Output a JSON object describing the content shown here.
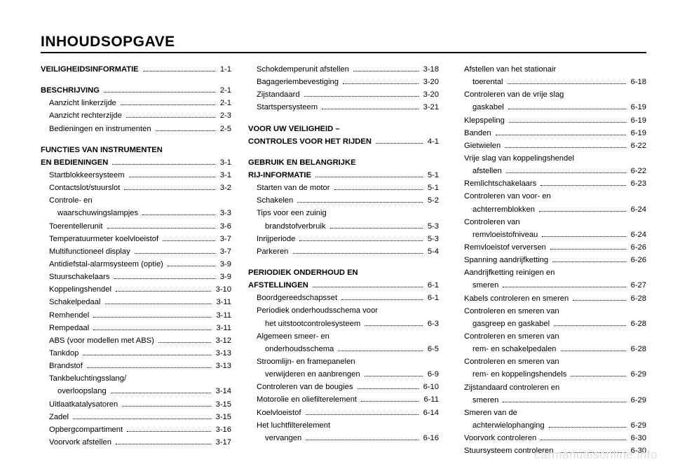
{
  "title": "INHOUDSOPGAVE",
  "watermark": "carmanualsonline.info",
  "columns": [
    [
      {
        "type": "sectionline",
        "bold": "VEILIGHEIDSINFORMATIE",
        "page": "1-1",
        "indent": 0
      },
      {
        "type": "spacer"
      },
      {
        "type": "sectionline",
        "bold": "BESCHRIJVING",
        "page": "2-1",
        "indent": 0
      },
      {
        "type": "entry",
        "label": "Aanzicht linkerzijde",
        "page": "2-1",
        "indent": 1
      },
      {
        "type": "entry",
        "label": "Aanzicht rechterzijde",
        "page": "2-3",
        "indent": 1
      },
      {
        "type": "entry",
        "label": "Bedieningen en instrumenten",
        "page": "2-5",
        "indent": 1
      },
      {
        "type": "spacer"
      },
      {
        "type": "sectiontext",
        "bold": "FUNCTIES VAN INSTRUMENTEN",
        "indent": 0
      },
      {
        "type": "sectionline",
        "bold": "EN BEDIENINGEN",
        "page": "3-1",
        "indent": 0
      },
      {
        "type": "entry",
        "label": "Startblokkeersysteem",
        "page": "3-1",
        "indent": 1
      },
      {
        "type": "entry",
        "label": "Contactslot/stuurslot",
        "page": "3-2",
        "indent": 1
      },
      {
        "type": "cont",
        "label": "Controle- en",
        "indent": 1
      },
      {
        "type": "entry",
        "label": "waarschuwingslampjes",
        "page": "3-3",
        "indent": 2
      },
      {
        "type": "entry",
        "label": "Toerentellerunit",
        "page": "3-6",
        "indent": 1
      },
      {
        "type": "entry",
        "label": "Temperatuurmeter koelvloeistof",
        "page": "3-7",
        "indent": 1
      },
      {
        "type": "entry",
        "label": "Multifunctioneel display",
        "page": "3-7",
        "indent": 1
      },
      {
        "type": "entry",
        "label": "Antidiefstal-alarmsysteem (optie)",
        "page": "3-9",
        "indent": 1
      },
      {
        "type": "entry",
        "label": "Stuurschakelaars",
        "page": "3-9",
        "indent": 1
      },
      {
        "type": "entry",
        "label": "Koppelingshendel",
        "page": "3-10",
        "indent": 1
      },
      {
        "type": "entry",
        "label": "Schakelpedaal",
        "page": "3-11",
        "indent": 1
      },
      {
        "type": "entry",
        "label": "Remhendel",
        "page": "3-11",
        "indent": 1
      },
      {
        "type": "entry",
        "label": "Rempedaal",
        "page": "3-11",
        "indent": 1
      },
      {
        "type": "entry",
        "label": "ABS (voor modellen met ABS)",
        "page": "3-12",
        "indent": 1
      },
      {
        "type": "entry",
        "label": "Tankdop",
        "page": "3-13",
        "indent": 1
      },
      {
        "type": "entry",
        "label": "Brandstof",
        "page": "3-13",
        "indent": 1
      },
      {
        "type": "cont",
        "label": "Tankbeluchtingsslang/",
        "indent": 1
      },
      {
        "type": "entry",
        "label": "overloopslang",
        "page": "3-14",
        "indent": 2
      },
      {
        "type": "entry",
        "label": "Uitlaatkatalysatoren",
        "page": "3-15",
        "indent": 1
      },
      {
        "type": "entry",
        "label": "Zadel",
        "page": "3-15",
        "indent": 1
      },
      {
        "type": "entry",
        "label": "Opbergcompartiment",
        "page": "3-16",
        "indent": 1
      },
      {
        "type": "entry",
        "label": "Voorvork afstellen",
        "page": "3-17",
        "indent": 1
      }
    ],
    [
      {
        "type": "entry",
        "label": "Schokdemperunit afstellen",
        "page": "3-18",
        "indent": 1
      },
      {
        "type": "entry",
        "label": "Bagageriembevestiging",
        "page": "3-20",
        "indent": 1
      },
      {
        "type": "entry",
        "label": "Zijstandaard",
        "page": "3-20",
        "indent": 1
      },
      {
        "type": "entry",
        "label": "Startspersysteem",
        "page": "3-21",
        "indent": 1
      },
      {
        "type": "spacer"
      },
      {
        "type": "sectiontext",
        "bold": "VOOR UW VEILIGHEID –",
        "indent": 0
      },
      {
        "type": "sectionline",
        "bold": "CONTROLES VOOR HET RIJDEN",
        "page": "4-1",
        "indent": 0
      },
      {
        "type": "spacer"
      },
      {
        "type": "sectiontext",
        "bold": "GEBRUIK EN BELANGRIJKE",
        "indent": 0
      },
      {
        "type": "sectionline",
        "bold": "RIJ-INFORMATIE",
        "page": "5-1",
        "indent": 0
      },
      {
        "type": "entry",
        "label": "Starten van de motor",
        "page": "5-1",
        "indent": 1
      },
      {
        "type": "entry",
        "label": "Schakelen",
        "page": "5-2",
        "indent": 1
      },
      {
        "type": "cont",
        "label": "Tips voor een zuinig",
        "indent": 1
      },
      {
        "type": "entry",
        "label": "brandstofverbruik",
        "page": "5-3",
        "indent": 2
      },
      {
        "type": "entry",
        "label": "Inrijperiode",
        "page": "5-3",
        "indent": 1
      },
      {
        "type": "entry",
        "label": "Parkeren",
        "page": "5-4",
        "indent": 1
      },
      {
        "type": "spacer"
      },
      {
        "type": "sectiontext",
        "bold": "PERIODIEK ONDERHOUD EN",
        "indent": 0
      },
      {
        "type": "sectionline",
        "bold": "AFSTELLINGEN",
        "page": "6-1",
        "indent": 0
      },
      {
        "type": "entry",
        "label": "Boordgereedschapsset",
        "page": "6-1",
        "indent": 1
      },
      {
        "type": "cont",
        "label": "Periodiek onderhoudsschema voor",
        "indent": 1
      },
      {
        "type": "entry",
        "label": "het uitstootcontrolesysteem",
        "page": "6-3",
        "indent": 2
      },
      {
        "type": "cont",
        "label": "Algemeen smeer- en",
        "indent": 1
      },
      {
        "type": "entry",
        "label": "onderhoudsschema",
        "page": "6-5",
        "indent": 2
      },
      {
        "type": "cont",
        "label": "Stroomlijn- en framepanelen",
        "indent": 1
      },
      {
        "type": "entry",
        "label": "verwijderen en aanbrengen",
        "page": "6-9",
        "indent": 2
      },
      {
        "type": "entry",
        "label": "Controleren van de bougies",
        "page": "6-10",
        "indent": 1
      },
      {
        "type": "entry",
        "label": "Motorolie en oliefilterelement",
        "page": "6-11",
        "indent": 1
      },
      {
        "type": "entry",
        "label": "Koelvloeistof",
        "page": "6-14",
        "indent": 1
      },
      {
        "type": "cont",
        "label": "Het luchtfilterelement",
        "indent": 1
      },
      {
        "type": "entry",
        "label": "vervangen",
        "page": "6-16",
        "indent": 2
      }
    ],
    [
      {
        "type": "cont",
        "label": "Afstellen van het stationair",
        "indent": 1
      },
      {
        "type": "entry",
        "label": "toerental",
        "page": "6-18",
        "indent": 2
      },
      {
        "type": "cont",
        "label": "Controleren van de vrije slag",
        "indent": 1
      },
      {
        "type": "entry",
        "label": "gaskabel",
        "page": "6-19",
        "indent": 2
      },
      {
        "type": "entry",
        "label": "Klepspeling",
        "page": "6-19",
        "indent": 1
      },
      {
        "type": "entry",
        "label": "Banden",
        "page": "6-19",
        "indent": 1
      },
      {
        "type": "entry",
        "label": "Gietwielen",
        "page": "6-22",
        "indent": 1
      },
      {
        "type": "cont",
        "label": "Vrije slag van koppelingshendel",
        "indent": 1
      },
      {
        "type": "entry",
        "label": "afstellen",
        "page": "6-22",
        "indent": 2
      },
      {
        "type": "entry",
        "label": "Remlichtschakelaars",
        "page": "6-23",
        "indent": 1
      },
      {
        "type": "cont",
        "label": "Controleren van voor- en",
        "indent": 1
      },
      {
        "type": "entry",
        "label": "achterremblokken",
        "page": "6-24",
        "indent": 2
      },
      {
        "type": "cont",
        "label": "Controleren van",
        "indent": 1
      },
      {
        "type": "entry",
        "label": "remvloeistofniveau",
        "page": "6-24",
        "indent": 2
      },
      {
        "type": "entry",
        "label": "Remvloeistof verversen",
        "page": "6-26",
        "indent": 1
      },
      {
        "type": "entry",
        "label": "Spanning aandrijfketting",
        "page": "6-26",
        "indent": 1
      },
      {
        "type": "cont",
        "label": "Aandrijfketting reinigen en",
        "indent": 1
      },
      {
        "type": "entry",
        "label": "smeren",
        "page": "6-27",
        "indent": 2
      },
      {
        "type": "entry",
        "label": "Kabels controleren en smeren",
        "page": "6-28",
        "indent": 1
      },
      {
        "type": "cont",
        "label": "Controleren en smeren van",
        "indent": 1
      },
      {
        "type": "entry",
        "label": "gasgreep en gaskabel",
        "page": "6-28",
        "indent": 2
      },
      {
        "type": "cont",
        "label": "Controleren en smeren van",
        "indent": 1
      },
      {
        "type": "entry",
        "label": "rem- en schakelpedalen",
        "page": "6-28",
        "indent": 2
      },
      {
        "type": "cont",
        "label": "Controleren en smeren van",
        "indent": 1
      },
      {
        "type": "entry",
        "label": "rem- en koppelingshendels",
        "page": "6-29",
        "indent": 2
      },
      {
        "type": "cont",
        "label": "Zijstandaard controleren en",
        "indent": 1
      },
      {
        "type": "entry",
        "label": "smeren",
        "page": "6-29",
        "indent": 2
      },
      {
        "type": "cont",
        "label": "Smeren van de",
        "indent": 1
      },
      {
        "type": "entry",
        "label": "achterwielophanging",
        "page": "6-29",
        "indent": 2
      },
      {
        "type": "entry",
        "label": "Voorvork controleren",
        "page": "6-30",
        "indent": 1
      },
      {
        "type": "entry",
        "label": "Stuursysteem controleren",
        "page": "6-30",
        "indent": 1
      }
    ]
  ]
}
